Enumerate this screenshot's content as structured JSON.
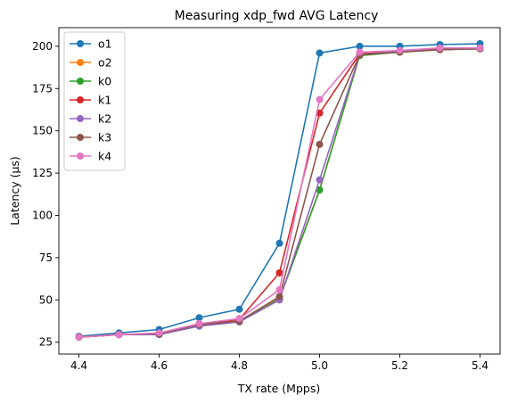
{
  "chart_data": {
    "type": "line",
    "title": "Measuring xdp_fwd AVG Latency",
    "xlabel": "TX rate (Mpps)",
    "ylabel": "Latency (µs)",
    "xlim": [
      4.35,
      5.45
    ],
    "ylim": [
      18,
      211
    ],
    "x_ticks": [
      4.4,
      4.6,
      4.8,
      5.0,
      5.2,
      5.4
    ],
    "x_tick_labels": [
      "4.4",
      "4.6",
      "4.8",
      "5.0",
      "5.2",
      "5.4"
    ],
    "y_ticks": [
      25,
      50,
      75,
      100,
      125,
      150,
      175,
      200
    ],
    "y_tick_labels": [
      "25",
      "50",
      "75",
      "100",
      "125",
      "150",
      "175",
      "200"
    ],
    "legend_position": "upper-left",
    "grid": false,
    "x": [
      4.4,
      4.5,
      4.6,
      4.7,
      4.8,
      4.9,
      5.0,
      5.1,
      5.2,
      5.3,
      5.4
    ],
    "series": [
      {
        "name": "o1",
        "color": "#1f77b4",
        "values": [
          28.5,
          30.5,
          32.5,
          39.5,
          44.5,
          83.5,
          196,
          200,
          200,
          201,
          201.5
        ]
      },
      {
        "name": "o2",
        "color": "#ff7f0e",
        "values": [
          28,
          29.5,
          30,
          35,
          37.5,
          51,
          115,
          194.5,
          197,
          198,
          198.5
        ]
      },
      {
        "name": "k0",
        "color": "#2ca02c",
        "values": [
          28,
          29.5,
          29.5,
          35,
          37,
          50.5,
          115,
          194.5,
          196.5,
          198,
          198.5
        ]
      },
      {
        "name": "k1",
        "color": "#d62728",
        "values": [
          28,
          29.5,
          30,
          35.5,
          38.5,
          66,
          160.5,
          195.5,
          197,
          198.5,
          199
        ]
      },
      {
        "name": "k2",
        "color": "#9467bd",
        "values": [
          28,
          29.5,
          29.5,
          34.5,
          37,
          50,
          121,
          195,
          197,
          198,
          198.5
        ]
      },
      {
        "name": "k3",
        "color": "#8c564b",
        "values": [
          28,
          29.5,
          30,
          35.5,
          37.5,
          52,
          142,
          195,
          196.5,
          198,
          198.5
        ]
      },
      {
        "name": "k4",
        "color": "#e377c2",
        "values": [
          28,
          29.5,
          30.5,
          36,
          39,
          56,
          168.5,
          196.5,
          197.5,
          199,
          199
        ]
      }
    ]
  }
}
